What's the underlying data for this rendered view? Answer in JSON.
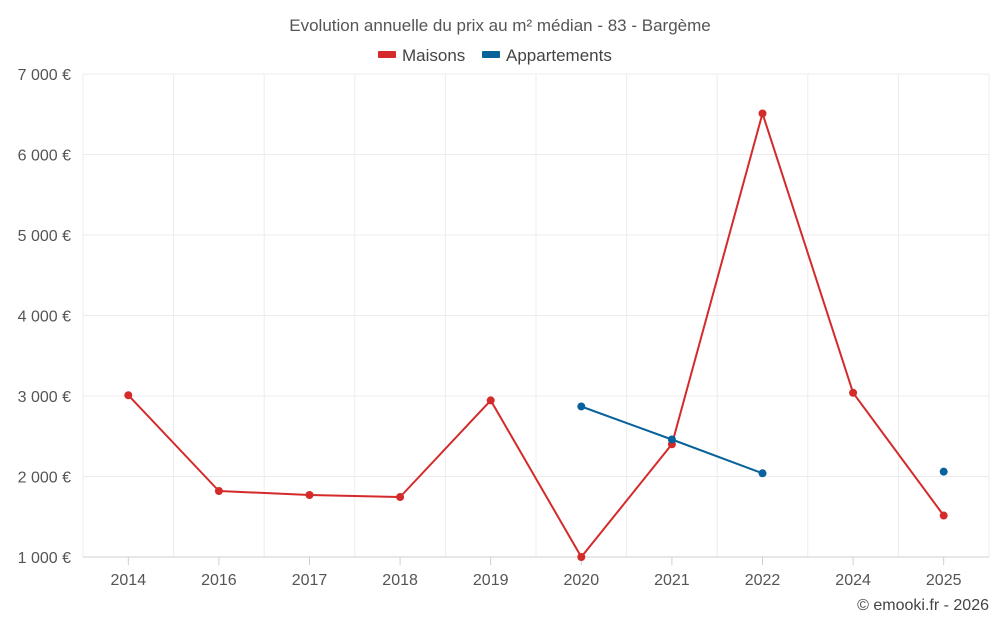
{
  "chart_data": {
    "type": "line",
    "title": "Evolution annuelle du prix au m² médian - 83 - Bargème",
    "xlabel": "",
    "ylabel": "",
    "categories": [
      "2014",
      "2016",
      "2017",
      "2018",
      "2019",
      "2020",
      "2021",
      "2022",
      "2024",
      "2025"
    ],
    "ylim": [
      1000,
      7000
    ],
    "y_ticks": [
      1000,
      2000,
      3000,
      4000,
      5000,
      6000,
      7000
    ],
    "y_tick_labels": [
      "1 000 €",
      "2 000 €",
      "3 000 €",
      "4 000 €",
      "5 000 €",
      "6 000 €",
      "7 000 €"
    ],
    "grid": true,
    "legend_position": "top-center",
    "series": [
      {
        "name": "Maisons",
        "color": "#d42a2a",
        "values": [
          3010,
          1820,
          1770,
          1745,
          2945,
          1000,
          2400,
          6510,
          3040,
          1515
        ]
      },
      {
        "name": "Appartements",
        "color": "#08629b",
        "values": [
          null,
          null,
          null,
          null,
          null,
          2870,
          2460,
          2040,
          null,
          2060
        ]
      }
    ]
  },
  "credit": "© emooki.fr - 2026"
}
